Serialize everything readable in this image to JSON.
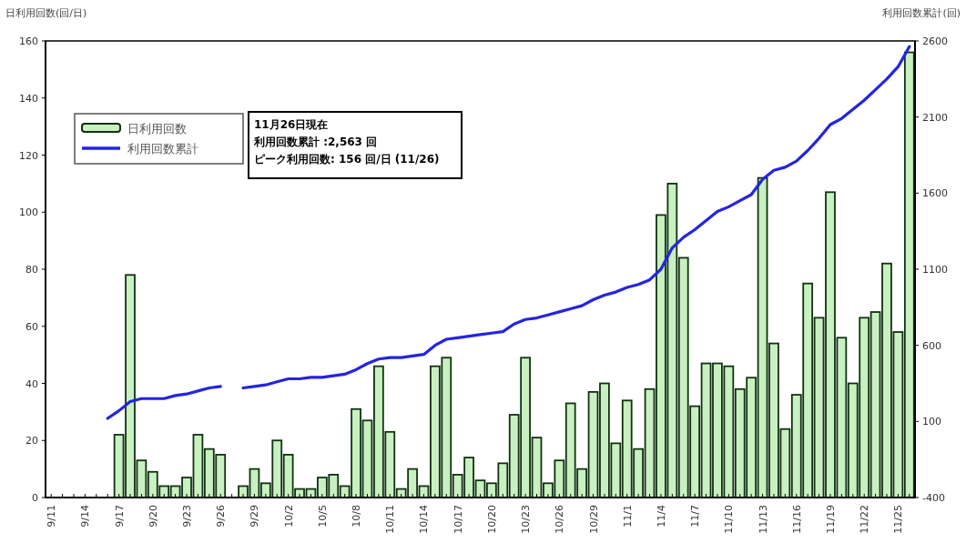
{
  "chart_data": {
    "type": "bar",
    "ylabel": "日利用回数(回/日)",
    "y2label": "利用回数累計(回)",
    "categories": [
      "9/11",
      null,
      null,
      "9/14",
      null,
      null,
      "9/17",
      null,
      null,
      "9/20",
      null,
      null,
      "9/23",
      null,
      null,
      "9/26",
      null,
      null,
      "9/29",
      null,
      null,
      "10/2",
      null,
      null,
      "10/5",
      null,
      null,
      "10/8",
      null,
      null,
      "10/11",
      null,
      null,
      "10/14",
      null,
      null,
      "10/17",
      null,
      null,
      "10/20",
      null,
      null,
      "10/23",
      null,
      null,
      "10/26",
      null,
      null,
      "10/29",
      null,
      null,
      "11/1",
      null,
      null,
      "11/4",
      null,
      null,
      "11/7",
      null,
      null,
      "11/10",
      null,
      null,
      "11/13",
      null,
      null,
      "11/16",
      null,
      null,
      "11/19",
      null,
      null,
      "11/22",
      null,
      null,
      "11/25",
      null
    ],
    "series": [
      {
        "name": "日利用回数",
        "color": "#c8f0c0",
        "values": [
          null,
          null,
          null,
          null,
          null,
          null,
          22,
          78,
          13,
          9,
          4,
          4,
          7,
          22,
          17,
          15,
          null,
          4,
          10,
          5,
          20,
          15,
          3,
          3,
          7,
          8,
          4,
          31,
          27,
          46,
          23,
          3,
          10,
          4,
          46,
          49,
          8,
          14,
          6,
          5,
          12,
          29,
          49,
          21,
          5,
          13,
          33,
          10,
          37,
          40,
          19,
          34,
          17,
          38,
          99,
          110,
          84,
          32,
          47,
          47,
          46,
          38,
          42,
          112,
          54,
          24,
          36,
          75,
          63,
          107,
          56,
          40,
          63,
          65,
          82,
          58,
          156
        ]
      },
      {
        "name": "利用回数累計",
        "type": "line",
        "axis": "y2",
        "color": "#2424e0",
        "values": [
          null,
          null,
          null,
          null,
          null,
          120,
          170,
          230,
          250,
          250,
          250,
          270,
          280,
          300,
          320,
          330,
          null,
          320,
          330,
          340,
          360,
          380,
          380,
          390,
          390,
          400,
          410,
          440,
          480,
          510,
          520,
          520,
          530,
          540,
          600,
          640,
          650,
          660,
          670,
          680,
          690,
          740,
          770,
          780,
          800,
          820,
          840,
          860,
          900,
          930,
          950,
          980,
          1000,
          1030,
          1100,
          1240,
          1310,
          1360,
          1420,
          1480,
          1510,
          1550,
          1590,
          1690,
          1750,
          1770,
          1810,
          1880,
          1960,
          2050,
          2090,
          2150,
          2210,
          2280,
          2350,
          2430,
          2563
        ]
      }
    ],
    "ylim": [
      0,
      160
    ],
    "yticks": [
      0,
      20,
      40,
      60,
      80,
      100,
      120,
      140,
      160
    ],
    "y2lim": [
      -400,
      2600
    ],
    "y2ticks": [
      -400,
      100,
      600,
      1100,
      1600,
      2100,
      2600
    ],
    "legend": "top left",
    "annotations": [
      "11月26日現在",
      "利用回数累計 :2,563 回",
      "ピーク利用回数: 156 回/日 (11/26)"
    ]
  }
}
